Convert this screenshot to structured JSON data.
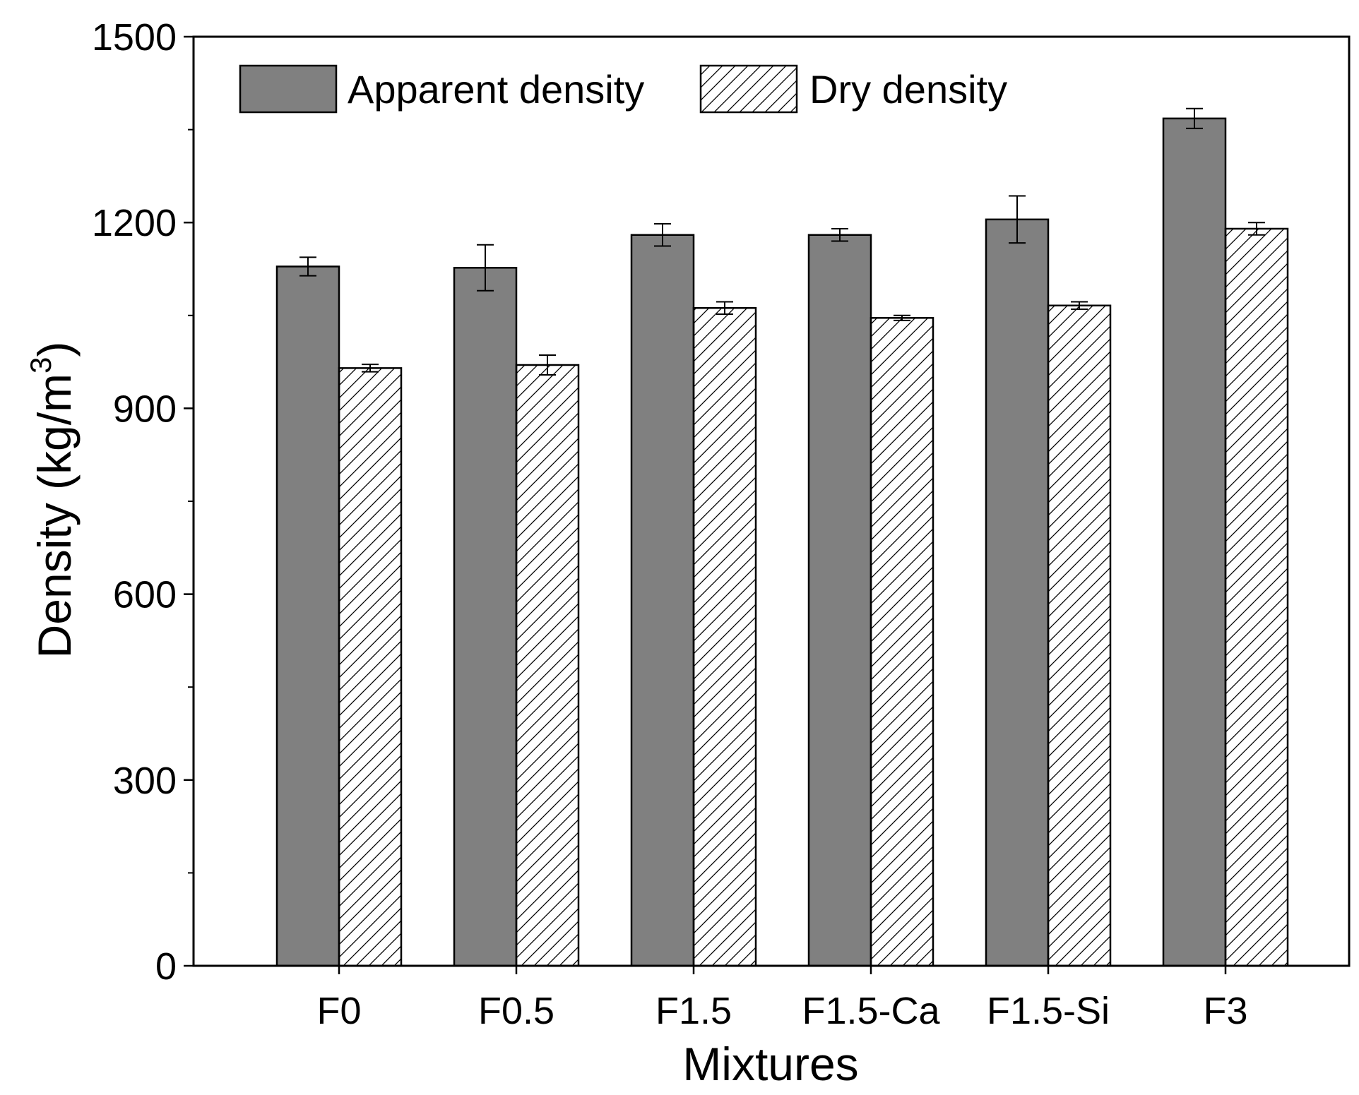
{
  "chart_data": {
    "type": "bar",
    "title": "",
    "xlabel": "Mixtures",
    "ylabel_main": "Density (kg/m",
    "ylabel_sup": "3",
    "ylabel_close": ")",
    "ylim": [
      0,
      1500
    ],
    "yticks": [
      0,
      300,
      600,
      900,
      1200,
      1500
    ],
    "categories": [
      "F0",
      "F0.5",
      "F1.5",
      "F1.5-Ca",
      "F1.5-Si",
      "F3"
    ],
    "series": [
      {
        "name": "Apparent density",
        "style": "solid",
        "color": "#808080",
        "values": [
          1129,
          1127,
          1180,
          1180,
          1205,
          1368
        ],
        "errors": [
          15,
          37,
          18,
          10,
          38,
          16
        ]
      },
      {
        "name": "Dry density",
        "style": "hatched",
        "color": "#ffffff",
        "values": [
          965,
          970,
          1062,
          1046,
          1066,
          1190
        ],
        "errors": [
          6,
          16,
          10,
          4,
          6,
          10
        ]
      }
    ],
    "legend": "top-left",
    "grid": false
  }
}
